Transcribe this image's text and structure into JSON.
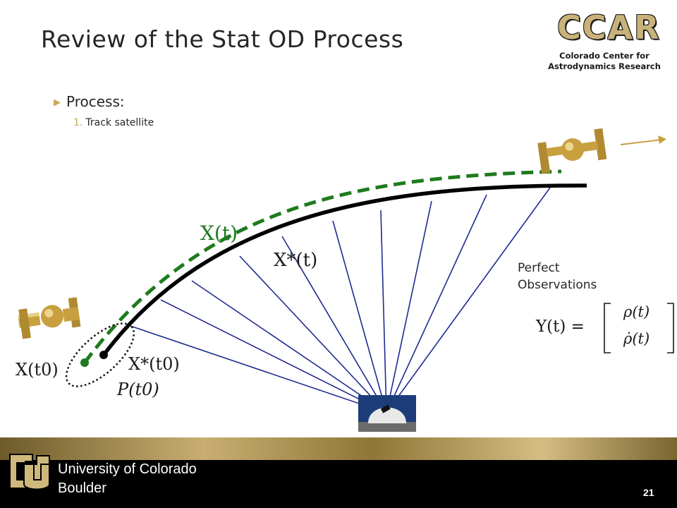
{
  "slide": {
    "title": "Review of the Stat OD Process",
    "bullet": "Process:",
    "step_number": "1.",
    "step_text": "Track satellite",
    "page_number": "21"
  },
  "logo": {
    "text": "CCAR",
    "subtitle_line1": "Colorado Center for",
    "subtitle_line2": "Astrodynamics Research"
  },
  "diagram": {
    "label_true_trajectory": "X(t)",
    "label_ref_trajectory": "X*(t)",
    "label_true_initial": "X(t0)",
    "label_ref_initial": "X*(t0)",
    "label_covariance": "P(t0)",
    "observations_line1": "Perfect",
    "observations_line2": "Observations",
    "obs_lhs": "Y(t) =",
    "obs_row1": "ρ(t)",
    "obs_row2": "ρ̇(t)",
    "colors": {
      "true_trajectory": "#1e7a1e",
      "reference_trajectory": "#000000",
      "observation_rays": "#1f2a8f",
      "satellite_gold": "#c8a040"
    }
  },
  "footer": {
    "university_line1": "University of Colorado",
    "university_line2": "Boulder"
  }
}
